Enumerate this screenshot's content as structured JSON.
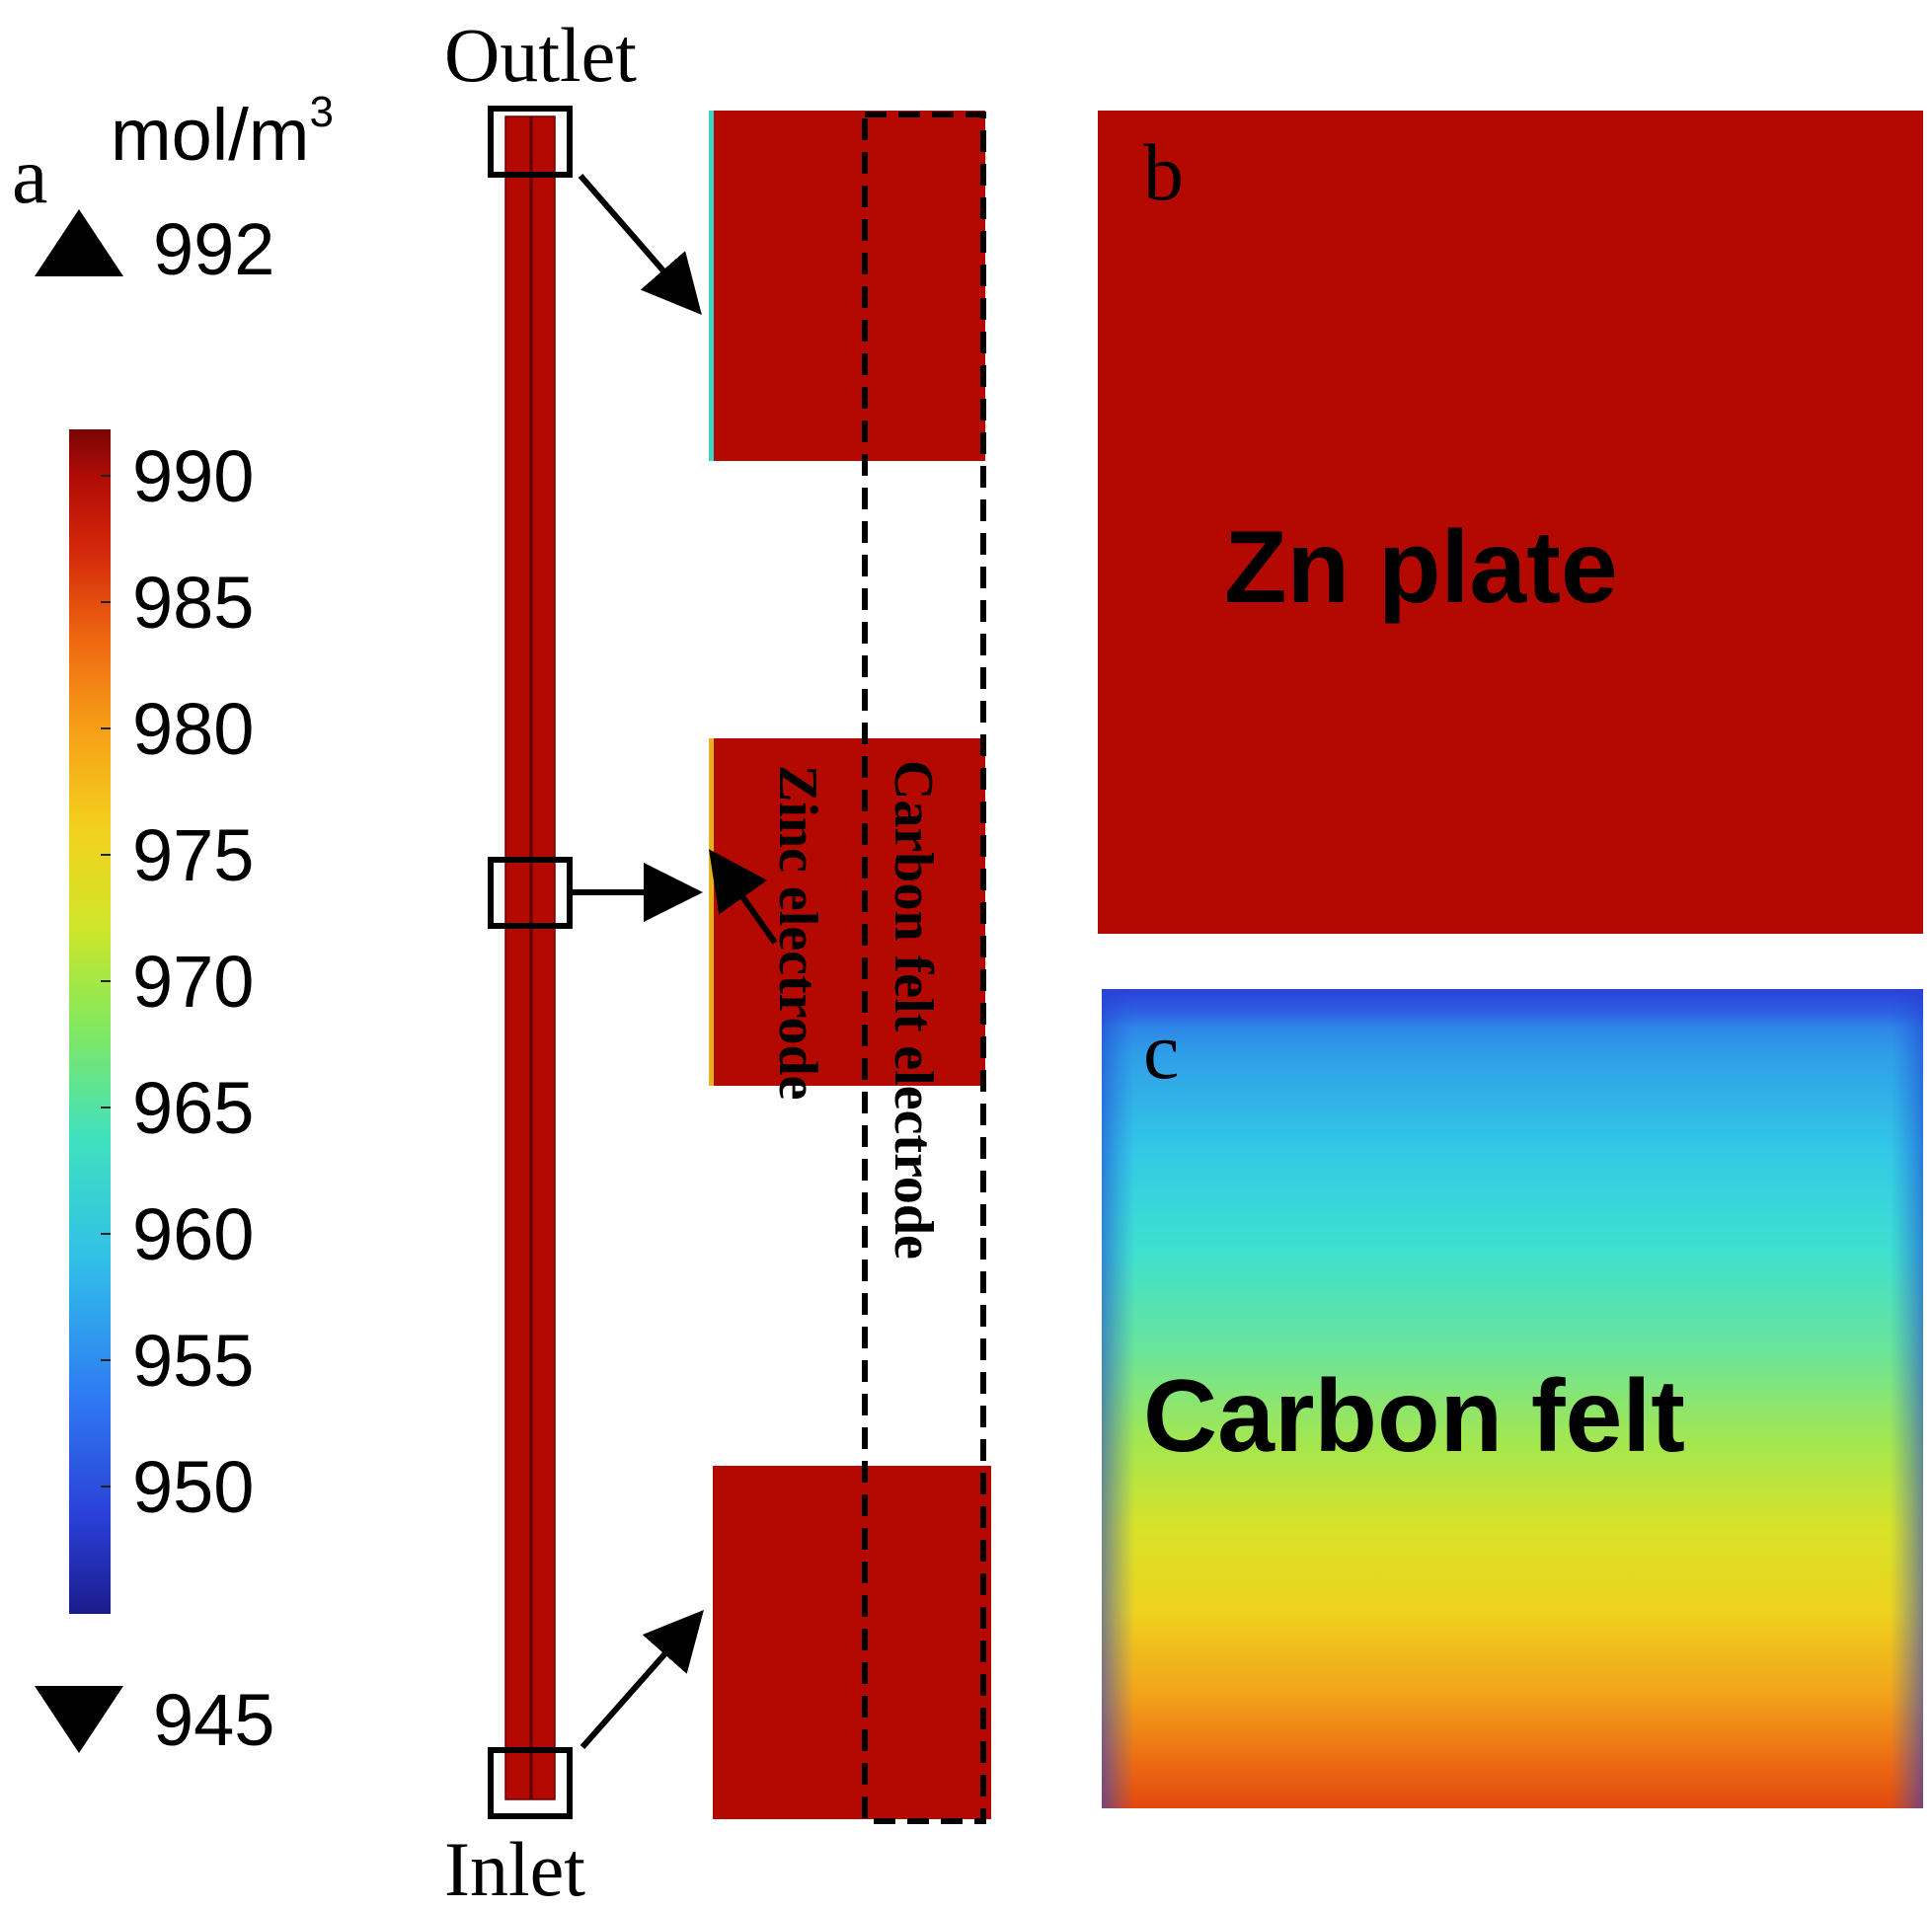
{
  "panel_a": {
    "label": "a",
    "unit": "mol/m",
    "unit_superscript": "3",
    "max_label": "992",
    "min_label": "945",
    "colorbar_ticks": [
      "990",
      "985",
      "980",
      "975",
      "970",
      "965",
      "960",
      "955",
      "950"
    ],
    "outlet_label": "Outlet",
    "inlet_label": "Inlet",
    "zinc_electrode_label": "Zinc electrode",
    "carbon_felt_electrode_label": "Carbon felt electrode"
  },
  "panel_b": {
    "label": "b",
    "title": "Zn plate"
  },
  "panel_c": {
    "label": "c",
    "title": "Carbon felt"
  },
  "colors": {
    "field_red": "#b30900",
    "outline": "#000000"
  }
}
